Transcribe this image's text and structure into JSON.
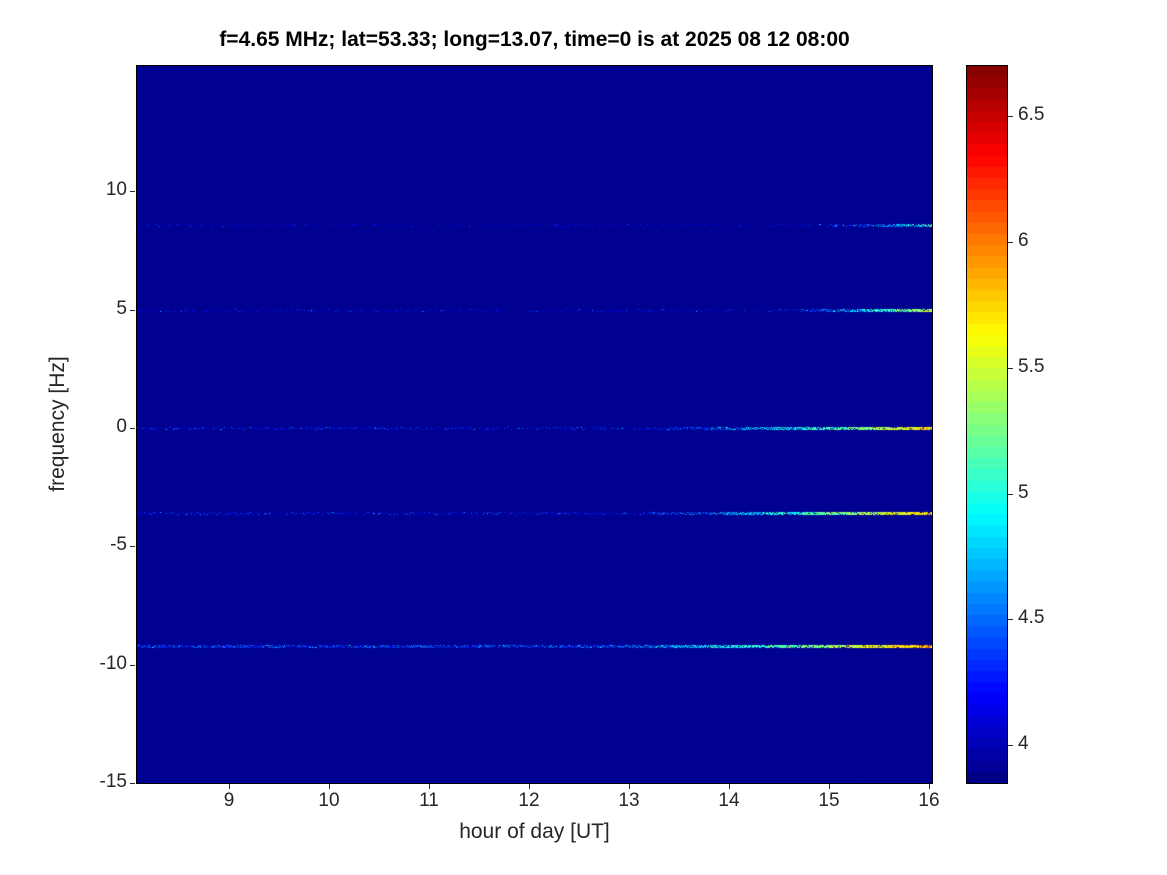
{
  "chart_data": {
    "type": "heatmap",
    "title": "f=4.65 MHz;  lat=53.33; long=13.07, time=0 is at 2025 08 12 08:00",
    "xlabel": "hour of day [UT]",
    "ylabel": "frequency [Hz]",
    "xlim": [
      8.08,
      16.03
    ],
    "ylim": [
      -15,
      15.3
    ],
    "xticks": [
      9,
      10,
      11,
      12,
      13,
      14,
      15,
      16
    ],
    "yticks": [
      -15,
      -10,
      -5,
      0,
      5,
      10
    ],
    "grid": false,
    "colormap": "jet",
    "colorbar": {
      "position": "right",
      "vmin": 3.85,
      "vmax": 6.7,
      "ticks": [
        4,
        4.5,
        5,
        5.5,
        6,
        6.5
      ],
      "levels": 64
    },
    "background_value": 3.9,
    "spectral_lines": [
      {
        "frequency_hz": 8.6,
        "base_value": 4.12,
        "peak_value": 4.9,
        "ramp_start_hour": 14.6,
        "density": 0.5
      },
      {
        "frequency_hz": 5.0,
        "base_value": 4.15,
        "peak_value": 5.45,
        "ramp_start_hour": 14.4,
        "density": 0.55
      },
      {
        "frequency_hz": 0.0,
        "base_value": 4.25,
        "peak_value": 5.7,
        "ramp_start_hour": 13.2,
        "density": 0.7
      },
      {
        "frequency_hz": -3.6,
        "base_value": 4.25,
        "peak_value": 5.75,
        "ramp_start_hour": 13.0,
        "density": 0.7
      },
      {
        "frequency_hz": -9.2,
        "base_value": 4.4,
        "peak_value": 5.85,
        "ramp_start_hour": 12.6,
        "density": 0.85
      }
    ]
  }
}
